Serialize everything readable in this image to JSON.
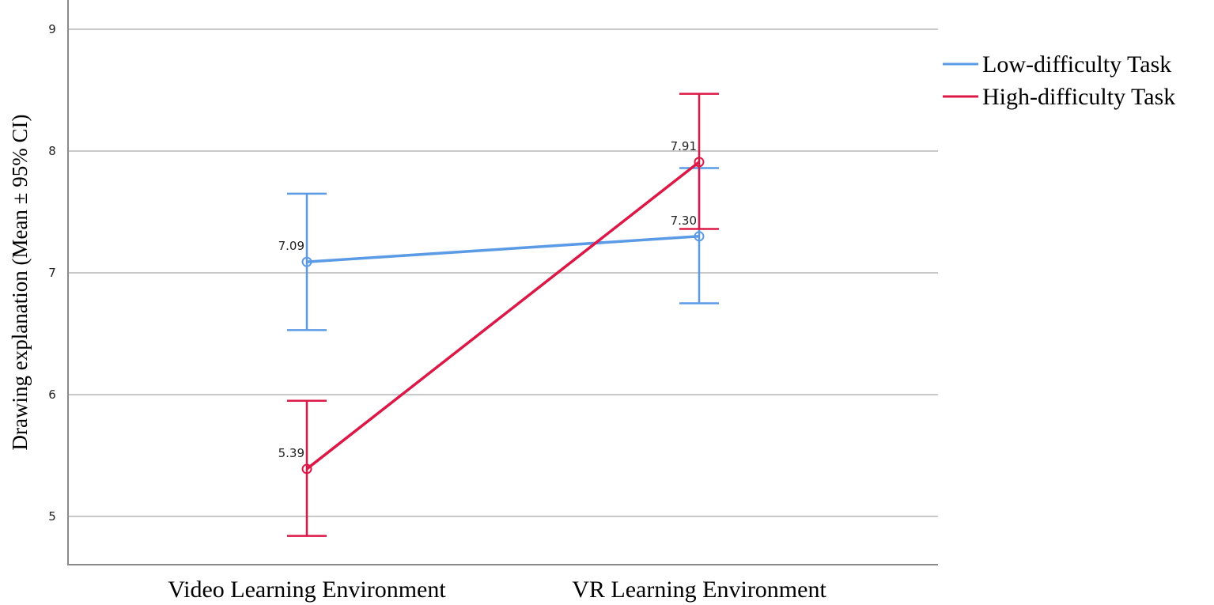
{
  "chart_data": {
    "type": "line",
    "title": "",
    "xlabel": "",
    "ylabel": "Drawing explanation (Mean ± 95% CI)",
    "ylim": [
      4.6,
      9.24
    ],
    "yticks": [
      5,
      6,
      7,
      8,
      9
    ],
    "grid": true,
    "legend_position": "right",
    "categories": [
      "Video Learning Environment",
      "VR Learning Environment"
    ],
    "series": [
      {
        "name": "Low-difficulty Task",
        "color": "#5b9be6",
        "values": [
          7.09,
          7.3
        ],
        "labels": [
          "7.09",
          "7.30"
        ],
        "ci_lower": [
          6.53,
          6.75
        ],
        "ci_upper": [
          7.65,
          7.86
        ]
      },
      {
        "name": "High-difficulty Task",
        "color": "#dc1847",
        "values": [
          5.39,
          7.91
        ],
        "labels": [
          "5.39",
          "7.91"
        ],
        "ci_lower": [
          4.84,
          7.36
        ],
        "ci_upper": [
          5.95,
          8.47
        ]
      }
    ]
  }
}
